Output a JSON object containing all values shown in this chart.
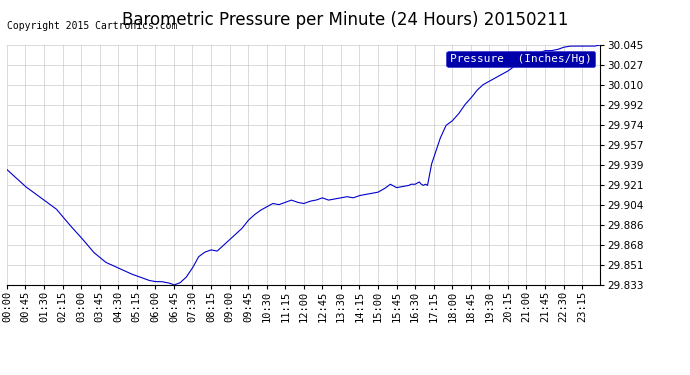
{
  "title": "Barometric Pressure per Minute (24 Hours) 20150211",
  "copyright": "Copyright 2015 Cartronics.com",
  "legend_label": "Pressure  (Inches/Hg)",
  "line_color": "#0000CC",
  "background_color": "#ffffff",
  "grid_color": "#cccccc",
  "ylim": [
    29.833,
    30.045
  ],
  "yticks": [
    29.833,
    29.851,
    29.868,
    29.886,
    29.904,
    29.921,
    29.939,
    29.957,
    29.974,
    29.992,
    30.01,
    30.027,
    30.045
  ],
  "xtick_labels": [
    "00:00",
    "00:45",
    "01:30",
    "02:15",
    "03:00",
    "03:45",
    "04:30",
    "05:15",
    "06:00",
    "06:45",
    "07:30",
    "08:15",
    "09:00",
    "09:45",
    "10:30",
    "11:15",
    "12:00",
    "12:45",
    "13:30",
    "14:15",
    "15:00",
    "15:45",
    "16:30",
    "17:15",
    "18:00",
    "18:45",
    "19:30",
    "20:15",
    "21:00",
    "21:45",
    "22:30",
    "23:15"
  ],
  "title_fontsize": 12,
  "tick_fontsize": 7.5,
  "copyright_fontsize": 7,
  "legend_fontsize": 8,
  "legend_bg": "#0000AA",
  "keypoints": [
    [
      0,
      29.935
    ],
    [
      45,
      29.92
    ],
    [
      90,
      29.908
    ],
    [
      120,
      29.9
    ],
    [
      150,
      29.887
    ],
    [
      180,
      29.875
    ],
    [
      210,
      29.862
    ],
    [
      240,
      29.853
    ],
    [
      270,
      29.848
    ],
    [
      300,
      29.843
    ],
    [
      315,
      29.841
    ],
    [
      330,
      29.839
    ],
    [
      345,
      29.837
    ],
    [
      360,
      29.836
    ],
    [
      375,
      29.836
    ],
    [
      390,
      29.835
    ],
    [
      400,
      29.834
    ],
    [
      405,
      29.833
    ],
    [
      420,
      29.835
    ],
    [
      435,
      29.84
    ],
    [
      450,
      29.848
    ],
    [
      465,
      29.858
    ],
    [
      480,
      29.862
    ],
    [
      495,
      29.864
    ],
    [
      510,
      29.863
    ],
    [
      525,
      29.868
    ],
    [
      540,
      29.873
    ],
    [
      555,
      29.878
    ],
    [
      570,
      29.883
    ],
    [
      585,
      29.89
    ],
    [
      600,
      29.895
    ],
    [
      615,
      29.899
    ],
    [
      630,
      29.902
    ],
    [
      645,
      29.905
    ],
    [
      660,
      29.904
    ],
    [
      675,
      29.906
    ],
    [
      690,
      29.908
    ],
    [
      705,
      29.906
    ],
    [
      720,
      29.905
    ],
    [
      735,
      29.907
    ],
    [
      750,
      29.908
    ],
    [
      765,
      29.91
    ],
    [
      780,
      29.908
    ],
    [
      795,
      29.909
    ],
    [
      810,
      29.91
    ],
    [
      825,
      29.911
    ],
    [
      840,
      29.91
    ],
    [
      855,
      29.912
    ],
    [
      870,
      29.913
    ],
    [
      885,
      29.914
    ],
    [
      900,
      29.915
    ],
    [
      915,
      29.918
    ],
    [
      930,
      29.922
    ],
    [
      945,
      29.919
    ],
    [
      960,
      29.92
    ],
    [
      975,
      29.921
    ],
    [
      980,
      29.922
    ],
    [
      990,
      29.922
    ],
    [
      1000,
      29.924
    ],
    [
      1005,
      29.922
    ],
    [
      1010,
      29.921
    ],
    [
      1015,
      29.922
    ],
    [
      1020,
      29.921
    ],
    [
      1030,
      29.94
    ],
    [
      1050,
      29.962
    ],
    [
      1065,
      29.974
    ],
    [
      1080,
      29.978
    ],
    [
      1095,
      29.984
    ],
    [
      1110,
      29.992
    ],
    [
      1125,
      29.998
    ],
    [
      1140,
      30.005
    ],
    [
      1155,
      30.01
    ],
    [
      1170,
      30.013
    ],
    [
      1185,
      30.016
    ],
    [
      1200,
      30.019
    ],
    [
      1215,
      30.022
    ],
    [
      1230,
      30.026
    ],
    [
      1245,
      30.03
    ],
    [
      1260,
      30.033
    ],
    [
      1275,
      30.036
    ],
    [
      1290,
      30.038
    ],
    [
      1305,
      30.04
    ],
    [
      1320,
      30.04
    ],
    [
      1335,
      30.041
    ],
    [
      1350,
      30.043
    ],
    [
      1365,
      30.044
    ],
    [
      1380,
      30.044
    ],
    [
      1395,
      30.044
    ],
    [
      1410,
      30.044
    ],
    [
      1425,
      30.044
    ],
    [
      1439,
      30.045
    ]
  ]
}
